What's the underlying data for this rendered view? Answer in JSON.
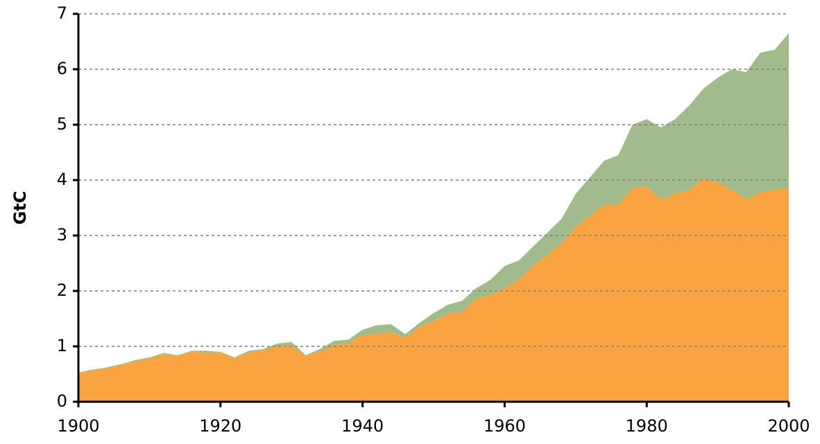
{
  "chart_data": {
    "type": "stacked_area",
    "y_label": "GtC",
    "x": [
      1900,
      1902,
      1904,
      1906,
      1908,
      1910,
      1912,
      1914,
      1916,
      1918,
      1920,
      1922,
      1924,
      1926,
      1928,
      1930,
      1932,
      1934,
      1936,
      1938,
      1940,
      1942,
      1944,
      1946,
      1948,
      1950,
      1952,
      1954,
      1956,
      1958,
      1960,
      1962,
      1964,
      1966,
      1968,
      1970,
      1972,
      1974,
      1976,
      1978,
      1980,
      1982,
      1984,
      1986,
      1988,
      1990,
      1992,
      1994,
      1996,
      1998,
      2000
    ],
    "series": [
      {
        "color": "#f9a441",
        "values": [
          0.52,
          0.56,
          0.6,
          0.66,
          0.72,
          0.78,
          0.85,
          0.82,
          0.9,
          0.88,
          0.88,
          0.78,
          0.88,
          0.92,
          1.0,
          1.02,
          0.82,
          0.9,
          1.02,
          1.05,
          1.2,
          1.22,
          1.25,
          1.15,
          1.35,
          1.45,
          1.58,
          1.62,
          1.85,
          1.92,
          2.05,
          2.2,
          2.45,
          2.65,
          2.85,
          3.15,
          3.35,
          3.55,
          3.55,
          3.85,
          3.88,
          3.65,
          3.75,
          3.82,
          4.02,
          3.95,
          3.82,
          3.65,
          3.78,
          3.82,
          3.85
        ]
      },
      {
        "color": "#a2bb8d",
        "values": [
          0.01,
          0.02,
          0.02,
          0.02,
          0.03,
          0.02,
          0.03,
          0.02,
          0.02,
          0.04,
          0.02,
          0.02,
          0.04,
          0.03,
          0.05,
          0.06,
          0.02,
          0.05,
          0.08,
          0.07,
          0.1,
          0.16,
          0.15,
          0.07,
          0.07,
          0.15,
          0.17,
          0.2,
          0.2,
          0.28,
          0.4,
          0.35,
          0.35,
          0.4,
          0.45,
          0.6,
          0.7,
          0.8,
          0.9,
          1.15,
          1.22,
          1.3,
          1.35,
          1.53,
          1.63,
          1.9,
          2.18,
          2.3,
          2.52,
          2.53,
          2.8
        ]
      }
    ],
    "xlim": [
      1900,
      2000
    ],
    "xticks": [
      1900,
      1920,
      1940,
      1960,
      1980,
      2000
    ],
    "ylim": [
      0,
      7
    ],
    "yticks": [
      0,
      1,
      2,
      3,
      4,
      5,
      6,
      7
    ],
    "grid": true
  }
}
